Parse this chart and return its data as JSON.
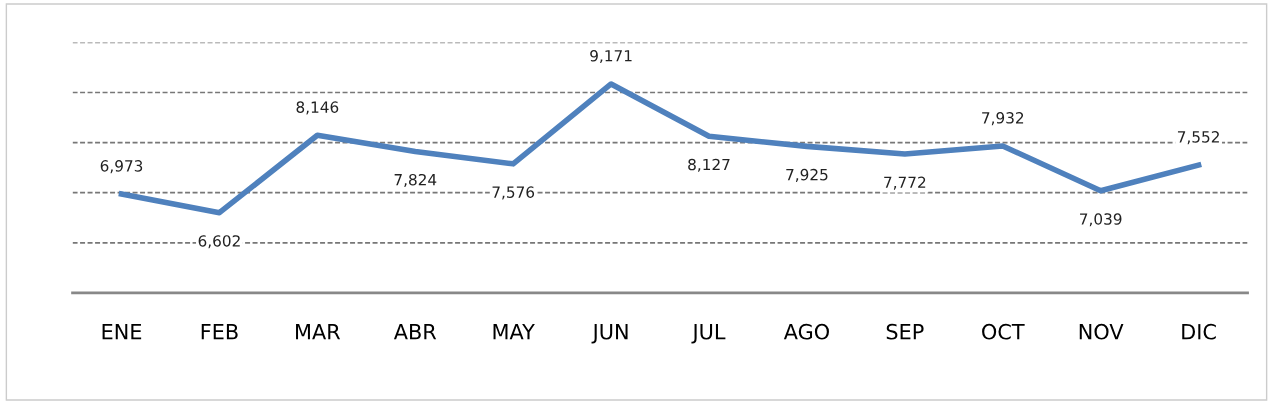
{
  "chart_data": {
    "type": "line",
    "categories": [
      "ENE",
      "FEB",
      "MAR",
      "ABR",
      "MAY",
      "JUN",
      "JUL",
      "AGO",
      "SEP",
      "OCT",
      "NOV",
      "DIC"
    ],
    "series": [
      {
        "color": "#4f81bd",
        "values": [
          6973,
          6602,
          8146,
          7824,
          7576,
          9171,
          8127,
          7925,
          7772,
          7932,
          7039,
          7552
        ],
        "value_labels": [
          "6,973",
          "6,602",
          "8,146",
          "7,824",
          "7,576",
          "9,171",
          "8,127",
          "7,925",
          "7,772",
          "7,932",
          "7,039",
          "7,552"
        ]
      }
    ],
    "ylim": [
      5000,
      10000
    ],
    "yticks": [
      {
        "value": 6000,
        "label": null
      },
      {
        "value": 7000,
        "label": null
      },
      {
        "value": 8000,
        "label": null
      },
      {
        "value": 9000,
        "label": null
      },
      {
        "value": 10000,
        "label": null
      }
    ],
    "grid": "y",
    "line_style": "solid",
    "marker": "none",
    "tick_labels": "x"
  }
}
